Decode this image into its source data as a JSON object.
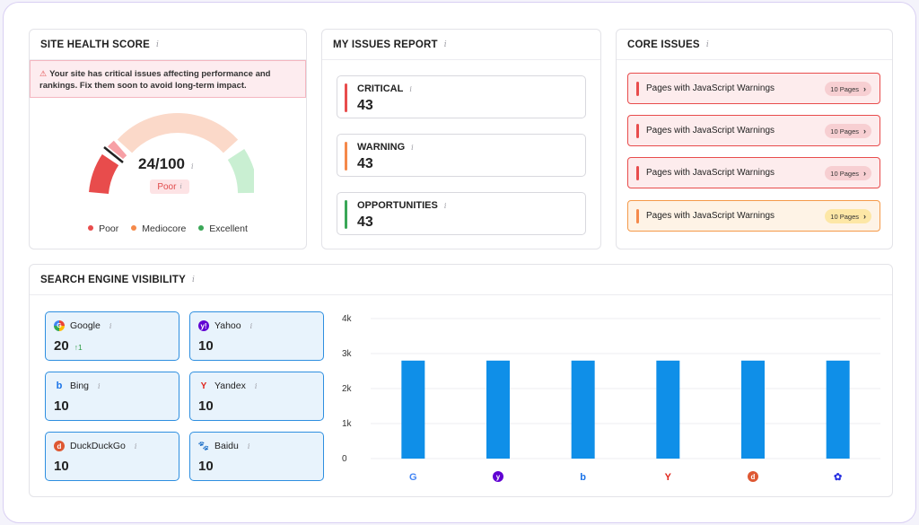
{
  "site_health": {
    "title": "SITE HEALTH SCORE",
    "alert": "Your site has critical issues affecting performance and rankings. Fix them soon to avoid long-term impact.",
    "score": "24/100",
    "status": "Poor",
    "score_fraction": 0.24,
    "legend": [
      {
        "label": "Poor",
        "color": "#e84c4c"
      },
      {
        "label": "Mediocore",
        "color": "#f5894a"
      },
      {
        "label": "Excellent",
        "color": "#3aa757"
      }
    ]
  },
  "issues_report": {
    "title": "MY ISSUES REPORT",
    "items": [
      {
        "label": "CRITICAL",
        "count": "43",
        "color": "#e84c4c"
      },
      {
        "label": "WARNING",
        "count": "43",
        "color": "#f5894a"
      },
      {
        "label": "OPPORTUNITIES",
        "count": "43",
        "color": "#3aa757"
      }
    ]
  },
  "core_issues": {
    "title": "CORE ISSUES",
    "items": [
      {
        "text": "Pages with JavaScript Warnings",
        "pill": "10 Pages",
        "level": "critical"
      },
      {
        "text": "Pages with JavaScript Warnings",
        "pill": "10 Pages",
        "level": "critical"
      },
      {
        "text": "Pages with JavaScript Warnings",
        "pill": "10 Pages",
        "level": "critical"
      },
      {
        "text": "Pages with JavaScript Warnings",
        "pill": "10 Pages",
        "level": "warning"
      }
    ]
  },
  "visibility": {
    "title": "SEARCH ENGINE VISIBILITY",
    "engines": [
      {
        "name": "Google",
        "value": "20",
        "delta": "↑1",
        "icon": "google-icon"
      },
      {
        "name": "Yahoo",
        "value": "10",
        "delta": "",
        "icon": "yahoo-icon"
      },
      {
        "name": "Bing",
        "value": "10",
        "delta": "",
        "icon": "bing-icon"
      },
      {
        "name": "Yandex",
        "value": "10",
        "delta": "",
        "icon": "yandex-icon"
      },
      {
        "name": "DuckDuckGo",
        "value": "10",
        "delta": "",
        "icon": "duckduckgo-icon"
      },
      {
        "name": "Baidu",
        "value": "10",
        "delta": "",
        "icon": "baidu-icon"
      }
    ]
  },
  "chart_data": {
    "type": "bar",
    "categories": [
      "Google",
      "Yahoo",
      "Bing",
      "Yandex",
      "DuckDuckGo",
      "Baidu"
    ],
    "values": [
      2800,
      2800,
      2800,
      2800,
      2800,
      2800
    ],
    "yticks": [
      "0",
      "1k",
      "2k",
      "3k",
      "4k"
    ],
    "ylim": [
      0,
      4000
    ],
    "grid": true,
    "bar_color": "#0f8fe8"
  }
}
